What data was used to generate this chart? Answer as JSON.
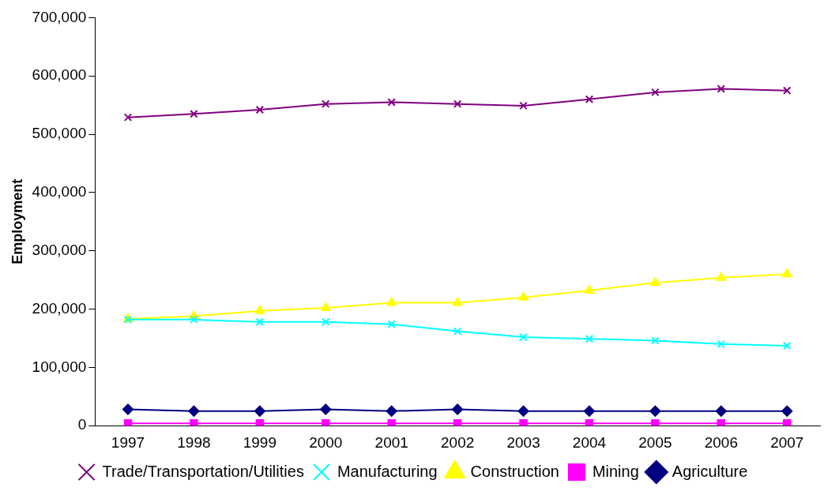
{
  "chart_data": {
    "type": "line",
    "ylabel": "Employment",
    "categories": [
      "1997",
      "1998",
      "1999",
      "2000",
      "2001",
      "2002",
      "2003",
      "2004",
      "2005",
      "2006",
      "2007"
    ],
    "ylim": [
      0,
      700000
    ],
    "yticks": [
      {
        "value": 0,
        "label": "0"
      },
      {
        "value": 100000,
        "label": "100,000"
      },
      {
        "value": 200000,
        "label": "200,000"
      },
      {
        "value": 300000,
        "label": "300,000"
      },
      {
        "value": 400000,
        "label": "400,000"
      },
      {
        "value": 500000,
        "label": "500,000"
      },
      {
        "value": 600000,
        "label": "600,000"
      },
      {
        "value": 700000,
        "label": "700,000"
      }
    ],
    "legend": "bottom",
    "grid": false,
    "series": [
      {
        "name": "Agriculture",
        "color": "#000080",
        "marker": "diamond",
        "values": [
          28000,
          25000,
          25000,
          28000,
          25000,
          28000,
          25000,
          25000,
          25000,
          25000,
          25000
        ]
      },
      {
        "name": "Mining",
        "color": "#ff00ff",
        "marker": "square",
        "values": [
          4000,
          4000,
          4000,
          4000,
          4000,
          4000,
          4000,
          4000,
          4000,
          4000,
          4000
        ]
      },
      {
        "name": "Construction",
        "color": "#ffff00",
        "marker": "triangle",
        "values": [
          183000,
          188000,
          197000,
          202000,
          211000,
          211000,
          220000,
          232000,
          245000,
          254000,
          260000
        ]
      },
      {
        "name": "Manufacturing",
        "color": "#00ffff",
        "marker": "cross",
        "values": [
          182000,
          182000,
          178000,
          178000,
          174000,
          162000,
          152000,
          149000,
          146000,
          140000,
          137000
        ]
      },
      {
        "name": "Trade/Transportation/Utilities",
        "color": "#800080",
        "marker": "cross",
        "values": [
          529000,
          535000,
          542000,
          552000,
          555000,
          552000,
          549000,
          560000,
          572000,
          578000,
          575000
        ]
      }
    ]
  }
}
